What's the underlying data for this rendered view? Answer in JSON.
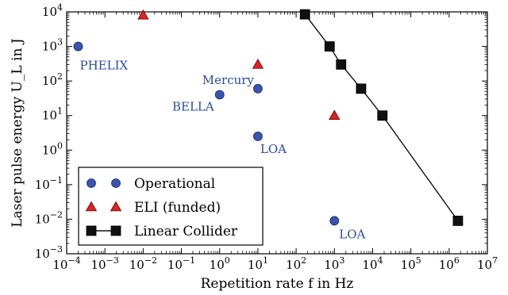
{
  "chart_data": {
    "type": "scatter",
    "title": "",
    "xlabel": "Repetition rate f in Hz",
    "ylabel": "Laser pulse energy U_L in J",
    "x_scale": "log",
    "y_scale": "log",
    "xlim": [
      0.0001,
      10000000
    ],
    "ylim": [
      0.001,
      10000
    ],
    "grid": false,
    "legend_position": "lower-left",
    "x_ticks": [
      {
        "value": 0.0001,
        "base": "10",
        "exp": "−4"
      },
      {
        "value": 0.001,
        "base": "10",
        "exp": "−3"
      },
      {
        "value": 0.01,
        "base": "10",
        "exp": "−2"
      },
      {
        "value": 0.1,
        "base": "10",
        "exp": "−1"
      },
      {
        "value": 1,
        "base": "10",
        "exp": "0"
      },
      {
        "value": 10,
        "base": "10",
        "exp": "1"
      },
      {
        "value": 100,
        "base": "10",
        "exp": "2"
      },
      {
        "value": 1000,
        "base": "10",
        "exp": "3"
      },
      {
        "value": 10000,
        "base": "10",
        "exp": "4"
      },
      {
        "value": 100000,
        "base": "10",
        "exp": "5"
      },
      {
        "value": 1000000,
        "base": "10",
        "exp": "6"
      },
      {
        "value": 10000000,
        "base": "10",
        "exp": "7"
      }
    ],
    "y_ticks": [
      {
        "value": 0.001,
        "base": "10",
        "exp": "−3"
      },
      {
        "value": 0.01,
        "base": "10",
        "exp": "−2"
      },
      {
        "value": 0.1,
        "base": "10",
        "exp": "−1"
      },
      {
        "value": 1,
        "base": "10",
        "exp": "0"
      },
      {
        "value": 10,
        "base": "10",
        "exp": "1"
      },
      {
        "value": 100,
        "base": "10",
        "exp": "2"
      },
      {
        "value": 1000,
        "base": "10",
        "exp": "3"
      },
      {
        "value": 10000,
        "base": "10",
        "exp": "4"
      }
    ],
    "series": [
      {
        "name": "Operational",
        "marker": "circle",
        "color": "#3a55b0",
        "line": false,
        "points": [
          {
            "x": 0.0002,
            "y": 1000
          },
          {
            "x": 1,
            "y": 40
          },
          {
            "x": 10,
            "y": 60
          },
          {
            "x": 10,
            "y": 2.5
          },
          {
            "x": 1000,
            "y": 0.009
          }
        ]
      },
      {
        "name": "ELI (funded)",
        "marker": "triangle",
        "color": "#dd2222",
        "line": false,
        "points": [
          {
            "x": 0.01,
            "y": 8000
          },
          {
            "x": 10,
            "y": 300
          },
          {
            "x": 1000,
            "y": 10
          }
        ]
      },
      {
        "name": "Linear Collider",
        "marker": "square",
        "color": "#111111",
        "line": true,
        "points": [
          {
            "x": 170,
            "y": 8500
          },
          {
            "x": 750,
            "y": 1000
          },
          {
            "x": 1500,
            "y": 300
          },
          {
            "x": 5000,
            "y": 60
          },
          {
            "x": 18000,
            "y": 10
          },
          {
            "x": 1700000,
            "y": 0.009
          }
        ]
      }
    ],
    "annotations": [
      {
        "text": "PHELIX",
        "color": "#2a4aa0",
        "x": 0.0002,
        "y": 1000
      },
      {
        "text": "Mercury",
        "color": "#2a4aa0",
        "x": 10,
        "y": 60
      },
      {
        "text": "BELLA",
        "color": "#2a4aa0",
        "x": 1,
        "y": 40
      },
      {
        "text": "LOA",
        "color": "#2a4aa0",
        "x": 10,
        "y": 2.5
      },
      {
        "text": "LOA",
        "color": "#2a4aa0",
        "x": 1000,
        "y": 0.009
      }
    ]
  }
}
